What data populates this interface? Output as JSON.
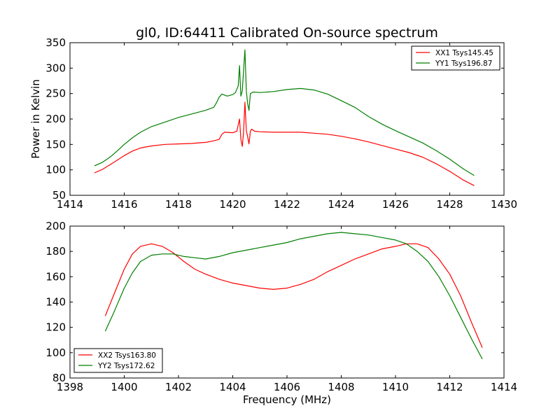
{
  "title": "gl0, ID:64411 Calibrated On-source spectrum",
  "chart_data": [
    {
      "type": "line",
      "title": "gl0, ID:64411 Calibrated On-source spectrum",
      "xlabel": "",
      "ylabel": "Power in Kelvin",
      "xlim": [
        1414,
        1430
      ],
      "ylim": [
        50,
        350
      ],
      "xticks": [
        1414,
        1416,
        1418,
        1420,
        1422,
        1424,
        1426,
        1428,
        1430
      ],
      "yticks": [
        50,
        100,
        150,
        200,
        250,
        300,
        350
      ],
      "grid": false,
      "legend_position": "top-right",
      "series": [
        {
          "name": "XX1 Tsys145.45",
          "color": "#ff0000",
          "points": [
            [
              1414.9,
              94
            ],
            [
              1415.2,
              101
            ],
            [
              1415.5,
              111
            ],
            [
              1415.8,
              121
            ],
            [
              1416.0,
              128
            ],
            [
              1416.3,
              137
            ],
            [
              1416.6,
              143
            ],
            [
              1417.0,
              147
            ],
            [
              1417.5,
              150
            ],
            [
              1418.0,
              151
            ],
            [
              1418.5,
              152
            ],
            [
              1419.0,
              154
            ],
            [
              1419.3,
              157
            ],
            [
              1419.5,
              160
            ],
            [
              1419.6,
              170
            ],
            [
              1419.7,
              174
            ],
            [
              1420.0,
              173
            ],
            [
              1420.15,
              176
            ],
            [
              1420.25,
              200
            ],
            [
              1420.3,
              160
            ],
            [
              1420.35,
              146
            ],
            [
              1420.4,
              175
            ],
            [
              1420.45,
              233
            ],
            [
              1420.5,
              177
            ],
            [
              1420.55,
              165
            ],
            [
              1420.6,
              151
            ],
            [
              1420.65,
              176
            ],
            [
              1420.7,
              180
            ],
            [
              1420.8,
              176
            ],
            [
              1421.0,
              175
            ],
            [
              1421.5,
              174
            ],
            [
              1422.0,
              174
            ],
            [
              1422.5,
              174
            ],
            [
              1423.0,
              172
            ],
            [
              1423.5,
              170
            ],
            [
              1424.0,
              166
            ],
            [
              1424.5,
              161
            ],
            [
              1425.0,
              155
            ],
            [
              1425.5,
              148
            ],
            [
              1426.0,
              141
            ],
            [
              1426.5,
              134
            ],
            [
              1427.0,
              125
            ],
            [
              1427.5,
              112
            ],
            [
              1428.0,
              97
            ],
            [
              1428.5,
              80
            ],
            [
              1428.9,
              69
            ]
          ]
        },
        {
          "name": "YY1 Tsys196.87",
          "color": "#007f00",
          "points": [
            [
              1414.9,
              108
            ],
            [
              1415.2,
              115
            ],
            [
              1415.5,
              126
            ],
            [
              1415.8,
              140
            ],
            [
              1416.0,
              150
            ],
            [
              1416.3,
              163
            ],
            [
              1416.6,
              174
            ],
            [
              1417.0,
              185
            ],
            [
              1417.5,
              194
            ],
            [
              1418.0,
              203
            ],
            [
              1418.5,
              210
            ],
            [
              1419.0,
              217
            ],
            [
              1419.3,
              223
            ],
            [
              1419.4,
              232
            ],
            [
              1419.5,
              243
            ],
            [
              1419.6,
              249
            ],
            [
              1419.8,
              245
            ],
            [
              1420.0,
              248
            ],
            [
              1420.1,
              252
            ],
            [
              1420.2,
              265
            ],
            [
              1420.25,
              305
            ],
            [
              1420.3,
              245
            ],
            [
              1420.35,
              255
            ],
            [
              1420.45,
              336
            ],
            [
              1420.5,
              255
            ],
            [
              1420.55,
              230
            ],
            [
              1420.6,
              217
            ],
            [
              1420.65,
              250
            ],
            [
              1420.75,
              253
            ],
            [
              1421.0,
              252
            ],
            [
              1421.5,
              254
            ],
            [
              1422.0,
              258
            ],
            [
              1422.5,
              260
            ],
            [
              1423.0,
              257
            ],
            [
              1423.5,
              249
            ],
            [
              1424.0,
              236
            ],
            [
              1424.5,
              223
            ],
            [
              1425.0,
              205
            ],
            [
              1425.5,
              190
            ],
            [
              1426.0,
              177
            ],
            [
              1426.5,
              165
            ],
            [
              1427.0,
              153
            ],
            [
              1427.5,
              138
            ],
            [
              1428.0,
              121
            ],
            [
              1428.5,
              102
            ],
            [
              1428.9,
              89
            ]
          ]
        }
      ]
    },
    {
      "type": "line",
      "title": "",
      "xlabel": "Frequency (MHz)",
      "ylabel": "",
      "xlim": [
        1398,
        1414
      ],
      "ylim": [
        80,
        200
      ],
      "xticks": [
        1398,
        1400,
        1402,
        1404,
        1406,
        1408,
        1410,
        1412,
        1414
      ],
      "yticks": [
        80,
        100,
        120,
        140,
        160,
        180,
        200
      ],
      "grid": false,
      "legend_position": "bottom-left",
      "series": [
        {
          "name": "XX2 Tsys163.80",
          "color": "#ff0000",
          "points": [
            [
              1399.3,
              129
            ],
            [
              1399.6,
              145
            ],
            [
              1400.0,
              166
            ],
            [
              1400.3,
              178
            ],
            [
              1400.6,
              184
            ],
            [
              1401.0,
              186
            ],
            [
              1401.4,
              184
            ],
            [
              1401.8,
              179
            ],
            [
              1402.2,
              172
            ],
            [
              1402.6,
              166
            ],
            [
              1403.0,
              162
            ],
            [
              1403.5,
              158
            ],
            [
              1404.0,
              155
            ],
            [
              1404.5,
              153
            ],
            [
              1405.0,
              151
            ],
            [
              1405.5,
              150
            ],
            [
              1406.0,
              151
            ],
            [
              1406.5,
              154
            ],
            [
              1407.0,
              158
            ],
            [
              1407.5,
              164
            ],
            [
              1408.0,
              169
            ],
            [
              1408.5,
              174
            ],
            [
              1409.0,
              178
            ],
            [
              1409.5,
              182
            ],
            [
              1410.0,
              184
            ],
            [
              1410.4,
              186
            ],
            [
              1410.8,
              186
            ],
            [
              1411.2,
              183
            ],
            [
              1411.6,
              174
            ],
            [
              1412.0,
              162
            ],
            [
              1412.4,
              145
            ],
            [
              1412.8,
              124
            ],
            [
              1413.2,
              104
            ]
          ]
        },
        {
          "name": "YY2 Tsys172.62",
          "color": "#007f00",
          "points": [
            [
              1399.3,
              117
            ],
            [
              1399.6,
              131
            ],
            [
              1400.0,
              151
            ],
            [
              1400.3,
              163
            ],
            [
              1400.6,
              172
            ],
            [
              1401.0,
              177
            ],
            [
              1401.4,
              178
            ],
            [
              1401.8,
              178
            ],
            [
              1402.2,
              176
            ],
            [
              1402.6,
              175
            ],
            [
              1403.0,
              174
            ],
            [
              1403.5,
              176
            ],
            [
              1404.0,
              179
            ],
            [
              1404.5,
              181
            ],
            [
              1405.0,
              183
            ],
            [
              1405.5,
              185
            ],
            [
              1406.0,
              187
            ],
            [
              1406.5,
              190
            ],
            [
              1407.0,
              192
            ],
            [
              1407.5,
              194
            ],
            [
              1408.0,
              195
            ],
            [
              1408.5,
              194
            ],
            [
              1409.0,
              193
            ],
            [
              1409.5,
              191
            ],
            [
              1410.0,
              189
            ],
            [
              1410.4,
              186
            ],
            [
              1410.8,
              180
            ],
            [
              1411.2,
              172
            ],
            [
              1411.6,
              160
            ],
            [
              1412.0,
              145
            ],
            [
              1412.4,
              128
            ],
            [
              1412.8,
              111
            ],
            [
              1413.2,
              95
            ]
          ]
        }
      ]
    }
  ]
}
